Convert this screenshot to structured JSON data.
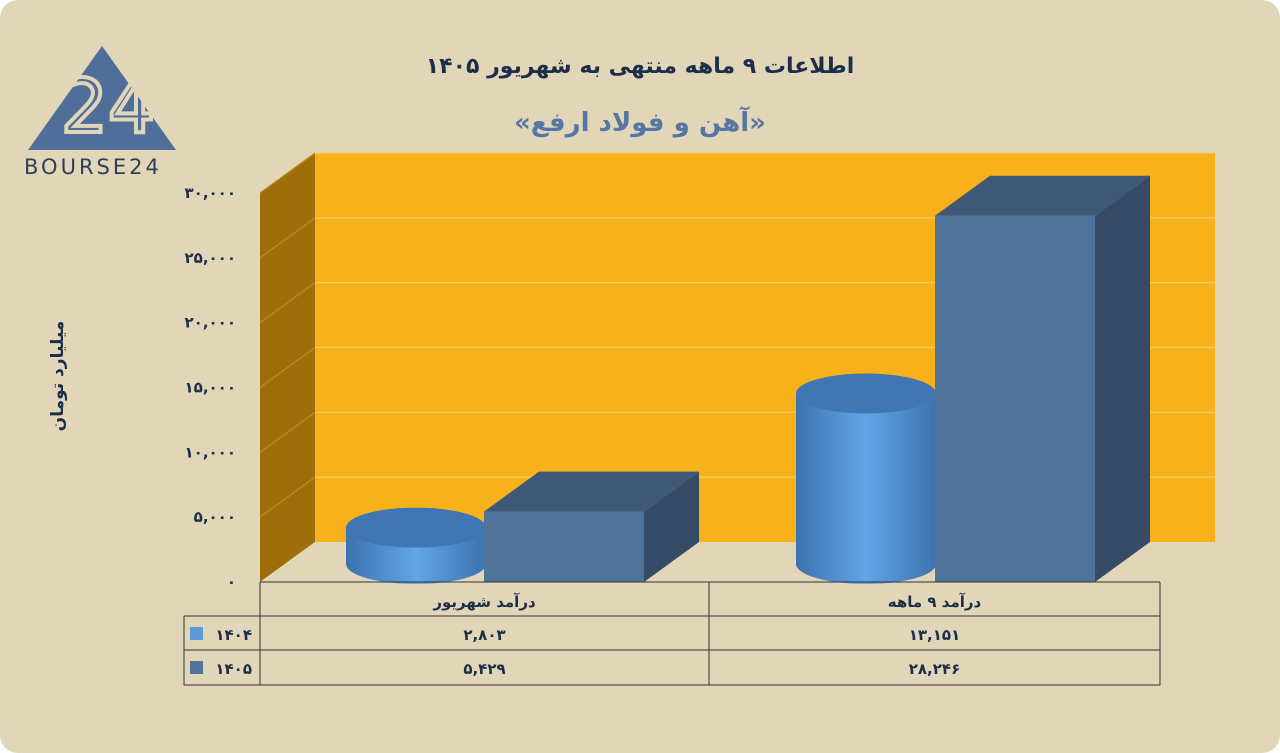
{
  "logo": {
    "text": "BOURSE24",
    "mark": "24"
  },
  "title": "اطلاعات ۹ ماهه منتهی به شهریور ۱۴۰۵",
  "subtitle": "«آهن و فولاد ارفع»",
  "colors": {
    "background": "#e2d6b8",
    "wall": "#f7b11a",
    "side_wall": "#9e6e0a",
    "series_1404": "#5b9bd5",
    "series_1405": "#4f7399",
    "text_dark": "#1c2e4a"
  },
  "chart_data": {
    "type": "bar",
    "style": "3d",
    "ylabel": "میلیارد تومان",
    "ylim": [
      0,
      30000
    ],
    "y_ticks": [
      "۰",
      "۵,۰۰۰",
      "۱۰,۰۰۰",
      "۱۵,۰۰۰",
      "۲۰,۰۰۰",
      "۲۵,۰۰۰",
      "۳۰,۰۰۰"
    ],
    "categories": [
      "درآمد شهریور",
      "درآمد ۹ ماهه"
    ],
    "series": [
      {
        "name": "۱۴۰۴",
        "shape": "cylinder",
        "values": [
          2803,
          13151
        ],
        "labels": [
          "۲,۸۰۳",
          "۱۳,۱۵۱"
        ]
      },
      {
        "name": "۱۴۰۵",
        "shape": "box",
        "values": [
          5429,
          28246
        ],
        "labels": [
          "۵,۴۲۹",
          "۲۸,۲۴۶"
        ]
      }
    ],
    "grid": true,
    "legend": "data table below chart"
  }
}
